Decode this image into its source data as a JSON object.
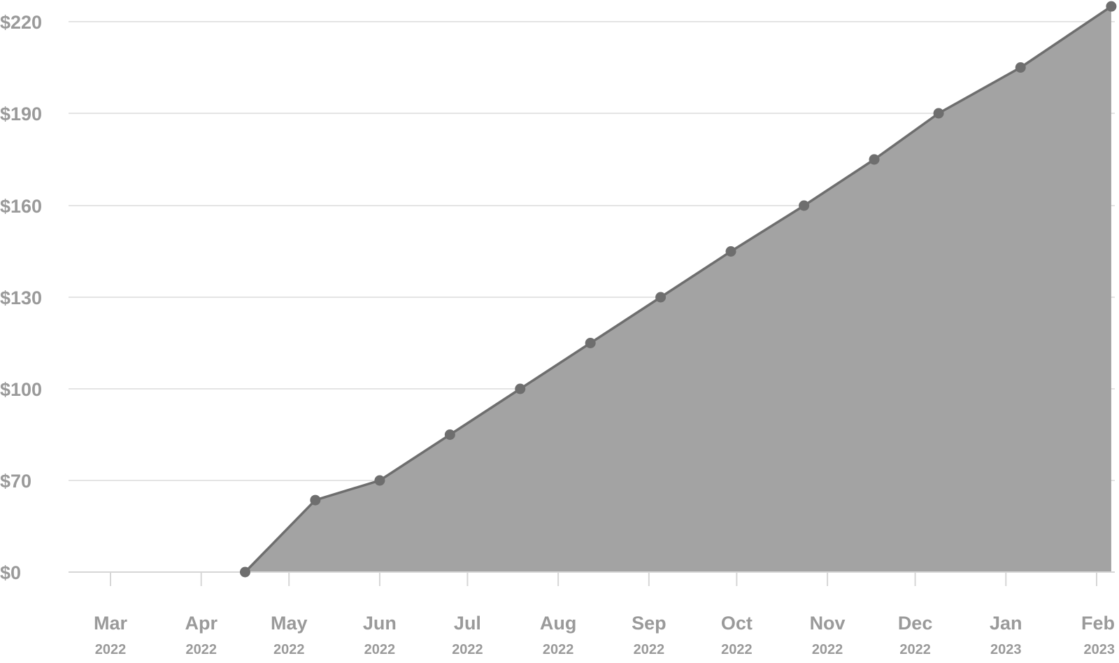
{
  "chart_data": {
    "type": "area",
    "title": "",
    "xlabel": "",
    "ylabel": "",
    "x_ticks": [
      {
        "month": "Mar",
        "year": "2022",
        "date": "2022-03-01"
      },
      {
        "month": "Apr",
        "year": "2022",
        "date": "2022-04-01"
      },
      {
        "month": "May",
        "year": "2022",
        "date": "2022-05-01"
      },
      {
        "month": "Jun",
        "year": "2022",
        "date": "2022-06-01"
      },
      {
        "month": "Jul",
        "year": "2022",
        "date": "2022-07-01"
      },
      {
        "month": "Aug",
        "year": "2022",
        "date": "2022-08-01"
      },
      {
        "month": "Sep",
        "year": "2022",
        "date": "2022-09-01"
      },
      {
        "month": "Oct",
        "year": "2022",
        "date": "2022-10-01"
      },
      {
        "month": "Nov",
        "year": "2022",
        "date": "2022-11-01"
      },
      {
        "month": "Dec",
        "year": "2022",
        "date": "2022-12-01"
      },
      {
        "month": "Jan",
        "year": "2023",
        "date": "2023-01-01"
      },
      {
        "month": "Feb",
        "year": "2023",
        "date": "2023-02-01"
      }
    ],
    "y_ticks": [
      {
        "value": 0,
        "label": "$0"
      },
      {
        "value": 70,
        "label": "$70"
      },
      {
        "value": 100,
        "label": "$100"
      },
      {
        "value": 130,
        "label": "$130"
      },
      {
        "value": 160,
        "label": "$160"
      },
      {
        "value": 190,
        "label": "$190"
      },
      {
        "value": 220,
        "label": "$220"
      }
    ],
    "series": [
      {
        "points": [
          {
            "x": "2022-04-16",
            "y": 0
          },
          {
            "x": "2022-05-10",
            "y": 55
          },
          {
            "x": "2022-06-01",
            "y": 70
          },
          {
            "x": "2022-06-25",
            "y": 85
          },
          {
            "x": "2022-07-19",
            "y": 100
          },
          {
            "x": "2022-08-12",
            "y": 115
          },
          {
            "x": "2022-09-05",
            "y": 130
          },
          {
            "x": "2022-09-29",
            "y": 145
          },
          {
            "x": "2022-10-24",
            "y": 160
          },
          {
            "x": "2022-11-17",
            "y": 175
          },
          {
            "x": "2022-12-09",
            "y": 190
          },
          {
            "x": "2023-01-06",
            "y": 205
          },
          {
            "x": "2023-02-06",
            "y": 225
          }
        ]
      }
    ],
    "colors": {
      "area": "#a3a3a3",
      "line": "#6e6e6e",
      "marker": "#6e6e6e",
      "grid": "#dcdcdc",
      "axis": "#d6d6d6",
      "tick_text": "#9a9a9a"
    },
    "grid": true,
    "legend": "none"
  }
}
